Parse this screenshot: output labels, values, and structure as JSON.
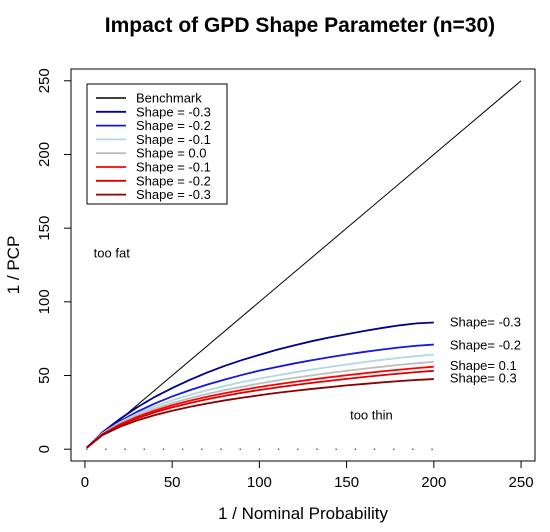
{
  "chart_data": {
    "type": "line",
    "title": "Impact of GPD Shape Parameter (n=30)",
    "xlabel": "1 / Nominal Probability",
    "ylabel": "1 / PCP",
    "xlim": [
      -8,
      258
    ],
    "ylim": [
      -8,
      258
    ],
    "xticks": [
      0,
      50,
      100,
      150,
      200,
      250
    ],
    "yticks": [
      0,
      50,
      100,
      150,
      200,
      250
    ],
    "grid": false,
    "legend_position": "top-left",
    "x": [
      1,
      10,
      20,
      30,
      40,
      50,
      60,
      70,
      80,
      90,
      100,
      110,
      120,
      130,
      140,
      150,
      160,
      170,
      180,
      190,
      200
    ],
    "benchmark": {
      "name": "Benchmark",
      "color": "#000000",
      "x": [
        1,
        250
      ],
      "values": [
        1,
        250
      ]
    },
    "series": [
      {
        "name": "Shape = -0.3",
        "color": "#00008b",
        "values": [
          1,
          11.5,
          20.5,
          28.5,
          35.5,
          41.5,
          47,
          52,
          56.5,
          60.5,
          64,
          67.5,
          70.5,
          73.3,
          75.8,
          78,
          80.2,
          82.2,
          84,
          85.4,
          86
        ]
      },
      {
        "name": "Shape = -0.2",
        "color": "#1515e6",
        "values": [
          1,
          11,
          19,
          25.5,
          31,
          35.8,
          40,
          43.8,
          47.2,
          50.4,
          53.3,
          55.8,
          58.2,
          60.4,
          62.4,
          64.3,
          66,
          67.6,
          69,
          70.2,
          71
        ]
      },
      {
        "name": "Shape = -0.1",
        "color": "#add8e6",
        "values": [
          1,
          10.8,
          18.2,
          24.2,
          29,
          33.2,
          36.8,
          40,
          42.9,
          45.5,
          47.9,
          50.1,
          52.1,
          54,
          55.8,
          57.5,
          59.1,
          60.6,
          62,
          63.2,
          64.2
        ]
      },
      {
        "name": "Shape =  0.0",
        "color": "#bebebe",
        "values": [
          1,
          10.5,
          17.5,
          23,
          27.5,
          31.3,
          34.6,
          37.5,
          40.1,
          42.4,
          44.6,
          46.6,
          48.4,
          50.1,
          51.7,
          53.2,
          54.6,
          55.9,
          57.2,
          58.3,
          59.3
        ]
      },
      {
        "name": "Shape = -0.1",
        "color": "#ff0000",
        "values": [
          1,
          10.2,
          16.8,
          22,
          26.2,
          29.8,
          32.9,
          35.6,
          38,
          40.2,
          42.2,
          44,
          45.7,
          47.3,
          48.8,
          50.2,
          51.5,
          52.8,
          53.9,
          55,
          56
        ]
      },
      {
        "name": "Shape = -0.2",
        "color": "#dd0000",
        "values": [
          1,
          10,
          16.2,
          21,
          25,
          28.4,
          31.3,
          33.9,
          36.2,
          38.3,
          40.2,
          41.9,
          43.5,
          45,
          46.4,
          47.7,
          49,
          50.2,
          51.3,
          52.3,
          53.2
        ]
      },
      {
        "name": "Shape = -0.3",
        "color": "#8b0000",
        "values": [
          1,
          9.5,
          15.2,
          19.6,
          23.1,
          26.1,
          28.7,
          31,
          33.1,
          34.9,
          36.6,
          38.2,
          39.6,
          40.9,
          42.1,
          43.3,
          44.3,
          45.3,
          46.2,
          47,
          47.6
        ]
      }
    ],
    "dotted_baseline": {
      "x": [
        1,
        200
      ],
      "y": 0
    },
    "annotations": [
      {
        "text": "too fat",
        "x": 5,
        "y": 130
      },
      {
        "text": "too thin",
        "x": 152,
        "y": 20
      }
    ],
    "end_labels": [
      {
        "text": "Shape= -0.3",
        "y": 86
      },
      {
        "text": "Shape= -0.2",
        "y": 70.5
      },
      {
        "text": "Shape= 0.1",
        "y": 56.5
      },
      {
        "text": "Shape= 0.3",
        "y": 48
      }
    ]
  }
}
